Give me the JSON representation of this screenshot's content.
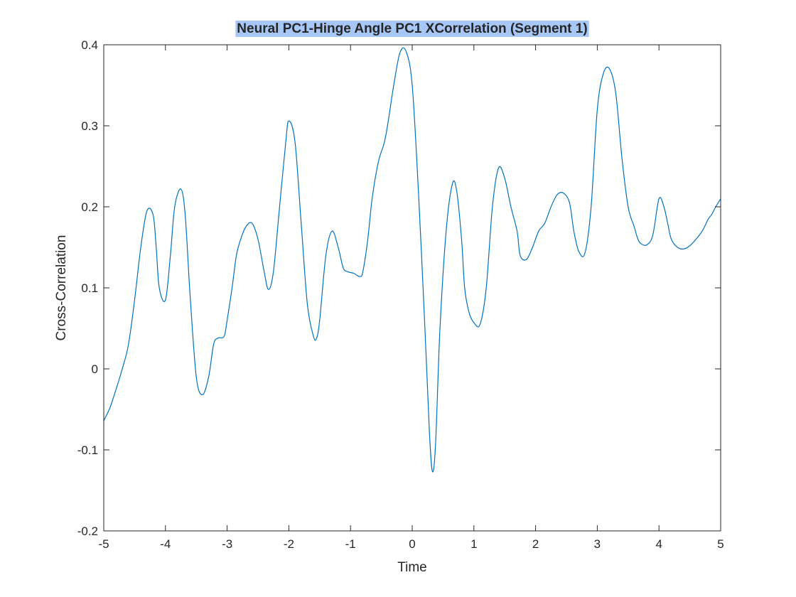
{
  "colors": {
    "background": "#ffffff",
    "axes": "#262626",
    "line": "#0072BD",
    "title_highlight": "#a7c7f7"
  },
  "chart_data": {
    "type": "line",
    "title": "Neural PC1-Hinge Angle PC1 XCorrelation (Segment 1)",
    "xlabel": "Time",
    "ylabel": "Cross-Correlation",
    "xlim": [
      -5,
      5
    ],
    "ylim": [
      -0.2,
      0.4
    ],
    "xticks": [
      -5,
      -4,
      -3,
      -2,
      -1,
      0,
      1,
      2,
      3,
      4,
      5
    ],
    "yticks": [
      -0.2,
      -0.1,
      0,
      0.1,
      0.2,
      0.3,
      0.4
    ],
    "xtick_labels": [
      "-5",
      "-4",
      "-3",
      "-2",
      "-1",
      "0",
      "1",
      "2",
      "3",
      "4",
      "5"
    ],
    "ytick_labels": [
      "-0.2",
      "-0.1",
      "0",
      "0.1",
      "0.2",
      "0.3",
      "0.4"
    ],
    "grid": false,
    "box": true,
    "series": [
      {
        "x": [
          -5.0,
          -4.9,
          -4.8,
          -4.7,
          -4.6,
          -4.5,
          -4.4,
          -4.3,
          -4.2,
          -4.15,
          -4.1,
          -4.0,
          -3.92,
          -3.85,
          -3.75,
          -3.68,
          -3.6,
          -3.5,
          -3.4,
          -3.3,
          -3.22,
          -3.15,
          -3.05,
          -3.0,
          -2.92,
          -2.85,
          -2.78,
          -2.7,
          -2.6,
          -2.5,
          -2.4,
          -2.33,
          -2.25,
          -2.15,
          -2.05,
          -2.0,
          -1.9,
          -1.8,
          -1.7,
          -1.6,
          -1.55,
          -1.5,
          -1.4,
          -1.3,
          -1.2,
          -1.12,
          -1.05,
          -0.95,
          -0.85,
          -0.8,
          -0.72,
          -0.65,
          -0.55,
          -0.45,
          -0.38,
          -0.3,
          -0.2,
          -0.1,
          0.0,
          0.1,
          0.2,
          0.28,
          0.33,
          0.38,
          0.45,
          0.55,
          0.65,
          0.72,
          0.8,
          0.85,
          0.92,
          1.0,
          1.1,
          1.2,
          1.3,
          1.4,
          1.5,
          1.6,
          1.7,
          1.75,
          1.85,
          1.95,
          2.05,
          2.15,
          2.25,
          2.35,
          2.45,
          2.55,
          2.62,
          2.7,
          2.8,
          2.9,
          3.0,
          3.1,
          3.2,
          3.3,
          3.4,
          3.5,
          3.6,
          3.65,
          3.7,
          3.8,
          3.9,
          4.0,
          4.08,
          4.14,
          4.2,
          4.3,
          4.4,
          4.5,
          4.6,
          4.7,
          4.8,
          4.85,
          4.92,
          5.0
        ],
        "values": [
          -0.064,
          -0.048,
          -0.025,
          0.0,
          0.03,
          0.085,
          0.15,
          0.195,
          0.19,
          0.15,
          0.1,
          0.085,
          0.14,
          0.2,
          0.222,
          0.19,
          0.09,
          -0.01,
          -0.032,
          -0.01,
          0.03,
          0.038,
          0.04,
          0.06,
          0.1,
          0.14,
          0.16,
          0.175,
          0.18,
          0.16,
          0.12,
          0.098,
          0.12,
          0.2,
          0.28,
          0.306,
          0.28,
          0.18,
          0.08,
          0.04,
          0.038,
          0.06,
          0.14,
          0.17,
          0.15,
          0.125,
          0.12,
          0.118,
          0.114,
          0.12,
          0.16,
          0.21,
          0.255,
          0.28,
          0.31,
          0.35,
          0.39,
          0.392,
          0.35,
          0.22,
          0.06,
          -0.08,
          -0.127,
          -0.09,
          0.05,
          0.17,
          0.228,
          0.22,
          0.16,
          0.1,
          0.07,
          0.057,
          0.055,
          0.1,
          0.2,
          0.248,
          0.235,
          0.2,
          0.17,
          0.14,
          0.135,
          0.15,
          0.17,
          0.18,
          0.2,
          0.215,
          0.217,
          0.205,
          0.17,
          0.145,
          0.143,
          0.2,
          0.32,
          0.365,
          0.37,
          0.34,
          0.26,
          0.2,
          0.175,
          0.162,
          0.155,
          0.153,
          0.165,
          0.21,
          0.2,
          0.18,
          0.16,
          0.15,
          0.148,
          0.152,
          0.16,
          0.17,
          0.185,
          0.19,
          0.2,
          0.21
        ]
      }
    ]
  }
}
